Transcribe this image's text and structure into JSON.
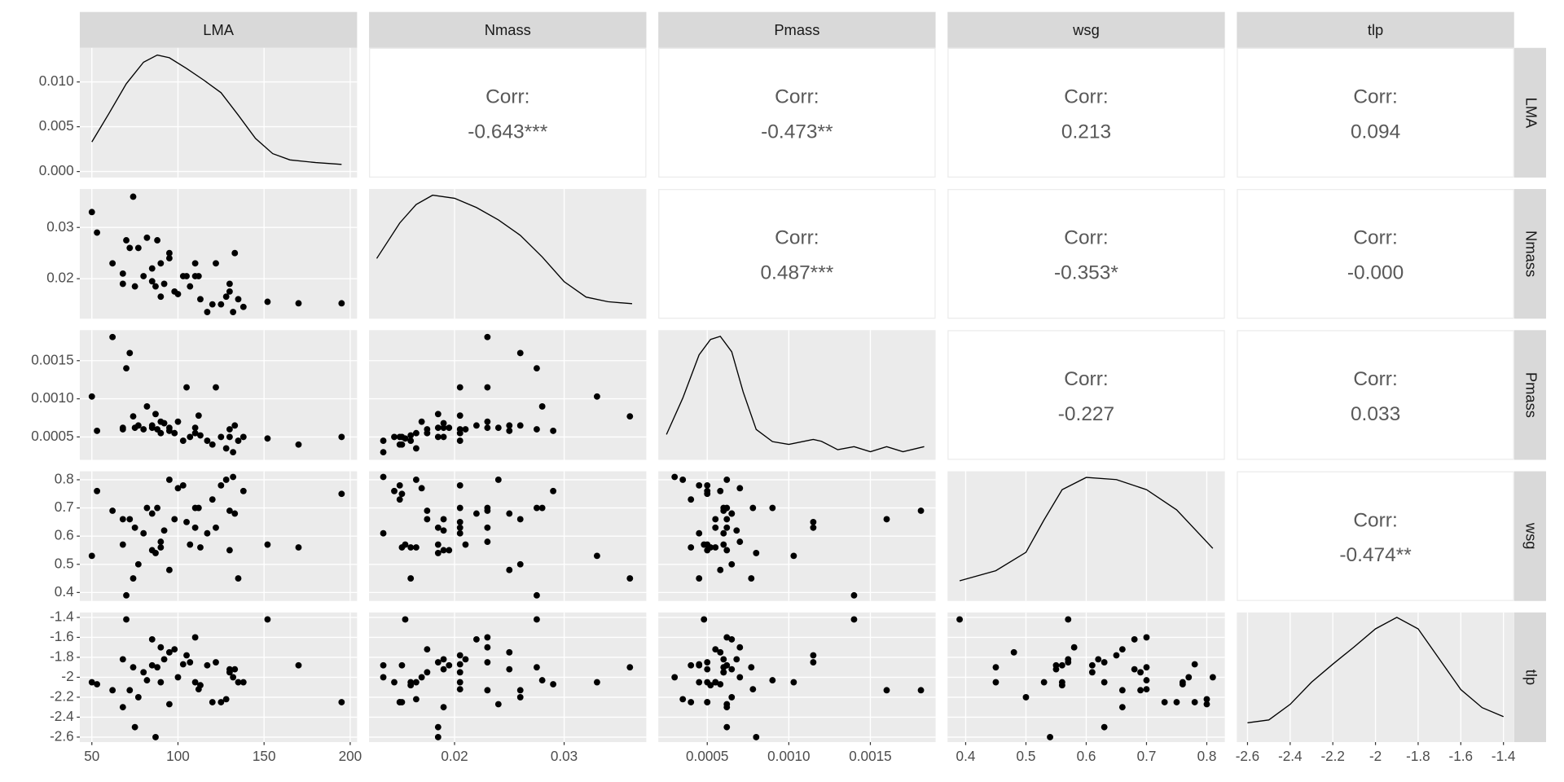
{
  "chart_data": {
    "type": "pairs",
    "corr_title": "Corr:",
    "variables": [
      {
        "name": "LMA",
        "values": [
          50,
          53,
          62,
          68,
          68,
          70,
          72,
          74,
          75,
          77,
          80,
          82,
          85,
          85,
          87,
          88,
          90,
          90,
          92,
          95,
          95,
          98,
          100,
          103,
          105,
          107,
          110,
          110,
          112,
          113,
          117,
          120,
          122,
          125,
          128,
          130,
          130,
          132,
          133,
          135,
          138,
          152,
          170,
          195
        ],
        "lim": [
          43,
          204
        ],
        "ticks": [
          50,
          100,
          150,
          200
        ],
        "density": {
          "x": [
            50,
            60,
            70,
            80,
            88,
            95,
            105,
            115,
            125,
            135,
            145,
            155,
            165,
            180,
            195
          ],
          "y": [
            0.0033,
            0.0065,
            0.0098,
            0.0122,
            0.013,
            0.0127,
            0.0115,
            0.0102,
            0.0088,
            0.0063,
            0.0037,
            0.002,
            0.0013,
            0.001,
            0.0008
          ],
          "ylim": [
            -0.00067,
            0.0138
          ],
          "yticks": [
            {
              "value": 0,
              "label": "0.000"
            },
            {
              "value": 0.005,
              "label": "0.005"
            },
            {
              "value": 0.01,
              "label": "0.010"
            }
          ]
        }
      },
      {
        "name": "Nmass",
        "values": [
          0.033,
          0.029,
          0.023,
          0.021,
          0.019,
          0.0275,
          0.026,
          0.036,
          0.0185,
          0.026,
          0.0205,
          0.028,
          0.022,
          0.0195,
          0.0185,
          0.0275,
          0.023,
          0.0165,
          0.019,
          0.025,
          0.024,
          0.0175,
          0.017,
          0.0205,
          0.0205,
          0.0185,
          0.0205,
          0.023,
          0.0205,
          0.016,
          0.0135,
          0.015,
          0.023,
          0.015,
          0.0165,
          0.019,
          0.0175,
          0.0135,
          0.025,
          0.016,
          0.0145,
          0.0155,
          0.0152,
          0.0152
        ],
        "lim": [
          0.0122,
          0.0375
        ],
        "ticks": [
          0.02,
          0.03
        ],
        "density": {
          "x": [
            0.0129,
            0.015,
            0.0165,
            0.018,
            0.02,
            0.022,
            0.024,
            0.026,
            0.028,
            0.03,
            0.032,
            0.034,
            0.0362
          ],
          "y": [
            35,
            58,
            70,
            76,
            74,
            68,
            60,
            50,
            36,
            20,
            10,
            7,
            5.7
          ],
          "ylim": [
            -4,
            80
          ]
        }
      },
      {
        "name": "Pmass",
        "values": [
          0.00103,
          0.00058,
          0.00181,
          0.0006,
          0.00062,
          0.0014,
          0.0016,
          0.00077,
          0.00062,
          0.00065,
          0.0006,
          0.0009,
          0.00065,
          0.00062,
          0.0008,
          0.0006,
          0.0007,
          0.00055,
          0.00068,
          0.00058,
          0.00062,
          0.00055,
          0.0007,
          0.00045,
          0.00115,
          0.0005,
          0.00055,
          0.00062,
          0.00078,
          0.00052,
          0.00045,
          0.0004,
          0.00115,
          0.0005,
          0.00035,
          0.0005,
          0.0006,
          0.0003,
          0.00065,
          0.00045,
          0.0005,
          0.00048,
          0.0004,
          0.0005
        ],
        "lim": [
          0.0002,
          0.0019
        ],
        "ticks": [
          0.0005,
          {
            "value": 0.001,
            "label": "0.0010"
          },
          0.0015
        ],
        "density": {
          "x": [
            0.00025,
            0.00035,
            0.00045,
            0.00052,
            0.00058,
            0.00065,
            0.00072,
            0.0008,
            0.0009,
            0.001,
            0.00115,
            0.0012,
            0.0013,
            0.0014,
            0.0015,
            0.0016,
            0.0017,
            0.00183
          ],
          "y": [
            310,
            900,
            1600,
            1850,
            1900,
            1650,
            1000,
            392,
            195,
            150,
            230,
            200,
            64,
            113,
            31,
            113,
            31,
            113
          ],
          "ylim": [
            -100,
            2000
          ]
        }
      },
      {
        "name": "wsg",
        "values": [
          0.53,
          0.76,
          0.69,
          0.57,
          0.66,
          0.39,
          0.66,
          0.45,
          0.63,
          0.5,
          0.61,
          0.7,
          0.68,
          0.55,
          0.54,
          0.7,
          0.58,
          0.56,
          0.62,
          0.48,
          0.8,
          0.66,
          0.77,
          0.78,
          0.65,
          0.57,
          0.63,
          0.7,
          0.7,
          0.56,
          0.61,
          0.73,
          0.63,
          0.78,
          0.8,
          0.55,
          0.69,
          0.81,
          0.68,
          0.45,
          0.76,
          0.57,
          0.56,
          0.75
        ],
        "lim": [
          0.37,
          0.83
        ],
        "ticks": [
          0.4,
          0.5,
          0.6,
          0.7,
          0.8
        ],
        "density": {
          "x": [
            0.39,
            0.45,
            0.5,
            0.53,
            0.56,
            0.6,
            0.65,
            0.7,
            0.75,
            0.81
          ],
          "y": [
            0.36,
            0.64,
            1.15,
            2.05,
            2.89,
            3.23,
            3.17,
            2.89,
            2.33,
            1.26
          ],
          "ylim": [
            -0.2,
            3.4
          ]
        }
      },
      {
        "name": "tlp",
        "values": [
          -2.05,
          -2.07,
          -2.13,
          -1.82,
          -2.3,
          -1.42,
          -2.13,
          -1.9,
          -2.5,
          -2.2,
          -1.95,
          -2.03,
          -1.62,
          -1.88,
          -2.6,
          -1.9,
          -1.7,
          -2.05,
          -1.82,
          -1.75,
          -2.27,
          -1.72,
          -2.0,
          -1.87,
          -1.78,
          -1.85,
          -2.05,
          -1.6,
          -2.12,
          -2.08,
          -1.88,
          -2.25,
          -1.85,
          -2.25,
          -2.22,
          -1.92,
          -1.95,
          -2.0,
          -1.92,
          -2.05,
          -2.05,
          -1.42,
          -1.88,
          -2.25
        ],
        "lim": [
          -2.65,
          -1.35
        ],
        "ticks": [
          -2.6,
          -2.4,
          -2.2,
          -2.0,
          -1.8,
          -1.6,
          -1.4
        ],
        "density": {
          "x": [
            -2.6,
            -2.5,
            -2.4,
            -2.3,
            -2.2,
            -2.1,
            -2.0,
            -1.9,
            -1.8,
            -1.7,
            -1.6,
            -1.5,
            -1.4
          ],
          "y": [
            0.155,
            0.19,
            0.38,
            0.65,
            0.87,
            1.08,
            1.3,
            1.44,
            1.3,
            0.93,
            0.56,
            0.34,
            0.23
          ],
          "ylim": [
            -0.08,
            1.5
          ]
        }
      }
    ],
    "correlations": [
      {
        "row": "LMA",
        "col": "Nmass",
        "value": -0.643,
        "label": "-0.643***"
      },
      {
        "row": "LMA",
        "col": "Pmass",
        "value": -0.473,
        "label": "-0.473**"
      },
      {
        "row": "LMA",
        "col": "wsg",
        "value": 0.213,
        "label": "0.213"
      },
      {
        "row": "LMA",
        "col": "tlp",
        "value": 0.094,
        "label": "0.094"
      },
      {
        "row": "Nmass",
        "col": "Pmass",
        "value": 0.487,
        "label": "0.487***"
      },
      {
        "row": "Nmass",
        "col": "wsg",
        "value": -0.353,
        "label": "-0.353*"
      },
      {
        "row": "Nmass",
        "col": "tlp",
        "value": 0,
        "label": "-0.000"
      },
      {
        "row": "Pmass",
        "col": "wsg",
        "value": -0.227,
        "label": "-0.227"
      },
      {
        "row": "Pmass",
        "col": "tlp",
        "value": 0.033,
        "label": "0.033"
      },
      {
        "row": "wsg",
        "col": "tlp",
        "value": -0.474,
        "label": "-0.474**"
      }
    ]
  }
}
